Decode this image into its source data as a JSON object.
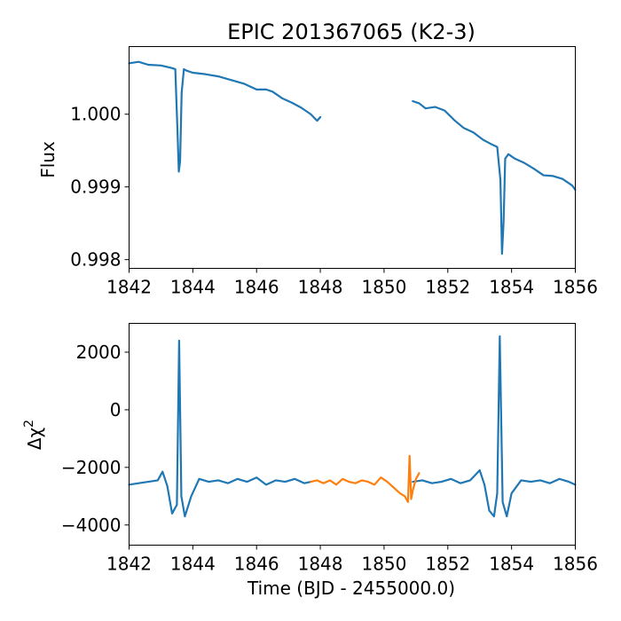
{
  "chart_data": [
    {
      "type": "line",
      "title": "EPIC 201367065 (K2-3)",
      "xlabel": "",
      "ylabel": "Flux",
      "xlim": [
        1842,
        1856
      ],
      "ylim": [
        0.99788,
        0.991
      ],
      "xticks": [
        "1842",
        "1844",
        "1846",
        "1848",
        "1850",
        "1852",
        "1854",
        "1856"
      ],
      "yticks": [
        "0.998",
        "0.999",
        "1.000"
      ],
      "grid": false,
      "colors": {
        "series": "#1f77b4"
      },
      "series": [
        {
          "segments": [
            {
              "x": [
                1842.0,
                1842.3,
                1842.6,
                1843.0,
                1843.3,
                1843.45,
                1843.52,
                1843.56,
                1843.6,
                1843.65,
                1843.72,
                1843.8,
                1844.0,
                1844.4,
                1844.8,
                1845.2,
                1845.6,
                1846.0,
                1846.3,
                1846.5,
                1846.8,
                1847.1,
                1847.4,
                1847.7,
                1847.9,
                1848.0
              ],
              "y": [
                1.0007,
                1.00072,
                1.00068,
                1.00067,
                1.00064,
                1.00062,
                0.99975,
                0.99921,
                0.99935,
                1.0003,
                1.00062,
                1.0006,
                1.00057,
                1.00055,
                1.00052,
                1.00047,
                1.00042,
                1.00034,
                1.00034,
                1.00031,
                1.00022,
                1.00016,
                1.00009,
                1.0,
                0.99991,
                0.99996
              ]
            },
            {
              "x": [
                1850.9,
                1851.1,
                1851.3,
                1851.6,
                1851.9,
                1852.2,
                1852.5,
                1852.8,
                1853.1,
                1853.4,
                1853.55,
                1853.65,
                1853.7,
                1853.75,
                1853.8,
                1853.9,
                1854.1,
                1854.4,
                1854.7,
                1855.0,
                1855.3,
                1855.6,
                1855.9,
                1856.0
              ],
              "y": [
                1.00018,
                1.00015,
                1.00008,
                1.0001,
                1.00005,
                0.99992,
                0.99981,
                0.99975,
                0.99965,
                0.99958,
                0.99955,
                0.9991,
                0.99808,
                0.99852,
                0.99939,
                0.99945,
                0.99939,
                0.99933,
                0.99925,
                0.99916,
                0.99915,
                0.99911,
                0.99902,
                0.99896
              ]
            }
          ]
        }
      ]
    },
    {
      "type": "line",
      "title": "",
      "xlabel": "Time (BJD - 2455000.0)",
      "ylabel": "Δχ²",
      "ylabel_main": "Δχ",
      "ylabel_sup": "2",
      "xlim": [
        1842,
        1856
      ],
      "ylim": [
        -4700,
        3000
      ],
      "xticks": [
        "1842",
        "1844",
        "1846",
        "1848",
        "1850",
        "1852",
        "1854",
        "1856"
      ],
      "yticks": [
        "−4000",
        "−2000",
        "0",
        "2000"
      ],
      "ytick_values": [
        -4000,
        -2000,
        0,
        2000
      ],
      "grid": false,
      "colors": {
        "series_a": "#1f77b4",
        "series_b": "#ff7f0e"
      },
      "series": [
        {
          "color": "#1f77b4",
          "segments": [
            {
              "x": [
                1842.0,
                1842.3,
                1842.6,
                1842.9,
                1843.05,
                1843.2,
                1843.35,
                1843.5,
                1843.57,
                1843.64,
                1843.75,
                1843.95,
                1844.2,
                1844.5,
                1844.8,
                1845.1,
                1845.4,
                1845.7,
                1846.0,
                1846.3,
                1846.6,
                1846.9,
                1847.2,
                1847.5,
                1847.7
              ],
              "x_note": "",
              "y": [
                -2600,
                -2550,
                -2500,
                -2450,
                -2150,
                -2650,
                -3600,
                -3300,
                2400,
                -3000,
                -3700,
                -3000,
                -2400,
                -2500,
                -2450,
                -2550,
                -2400,
                -2500,
                -2350,
                -2600,
                -2450,
                -2500,
                -2400,
                -2550,
                -2500
              ]
            },
            {
              "x": [
                1850.9,
                1851.2,
                1851.5,
                1851.8,
                1852.1,
                1852.4,
                1852.7,
                1853.0,
                1853.15,
                1853.3,
                1853.45,
                1853.55,
                1853.63,
                1853.72,
                1853.85,
                1854.0,
                1854.3,
                1854.6,
                1854.9,
                1855.2,
                1855.5,
                1855.8,
                1856.0
              ],
              "y": [
                -2500,
                -2450,
                -2550,
                -2500,
                -2400,
                -2550,
                -2450,
                -2100,
                -2600,
                -3500,
                -3700,
                -2900,
                2550,
                -3200,
                -3700,
                -2900,
                -2450,
                -2500,
                -2450,
                -2550,
                -2400,
                -2500,
                -2600
              ]
            }
          ]
        },
        {
          "color": "#ff7f0e",
          "segments": [
            {
              "x": [
                1847.7,
                1847.9,
                1848.1,
                1848.3,
                1848.5,
                1848.7,
                1848.9,
                1849.1,
                1849.3,
                1849.5,
                1849.7,
                1849.9,
                1850.1,
                1850.3,
                1850.5,
                1850.65,
                1850.75,
                1850.8,
                1850.85,
                1850.9,
                1851.0,
                1851.1
              ],
              "y": [
                -2500,
                -2450,
                -2550,
                -2450,
                -2600,
                -2400,
                -2500,
                -2550,
                -2450,
                -2500,
                -2600,
                -2350,
                -2500,
                -2700,
                -2900,
                -3000,
                -3200,
                -1600,
                -3100,
                -2800,
                -2400,
                -2200
              ]
            }
          ]
        }
      ]
    }
  ]
}
